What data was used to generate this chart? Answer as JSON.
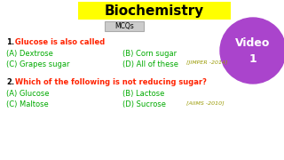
{
  "title": "Biochemistry",
  "title_bg": "#ffff00",
  "title_color": "#000000",
  "subtitle": "MCQs",
  "subtitle_bg": "#cccccc",
  "subtitle_color": "#000000",
  "bg_color": "#ffffff",
  "circle_color": "#aa44cc",
  "circle_text1": "Video",
  "circle_text2": "1",
  "circle_text_color": "#ffffff",
  "q1_num": "1.",
  "q1_text": " Glucose is also called",
  "q1_num_color": "#000000",
  "q1_text_color": "#ff2200",
  "q1_a": "(A) Dextrose",
  "q1_b": "(B) Corn sugar",
  "q1_c": "(C) Grapes sugar",
  "q1_d": "(D) All of these",
  "q1_ref": "[JIMPER -2014]",
  "q1_option_color": "#00aa00",
  "q1_ref_color": "#999900",
  "q2_num": "2.",
  "q2_text": " Which of the following is not reducing sugar?",
  "q2_num_color": "#000000",
  "q2_text_color": "#ff2200",
  "q2_a": "(A) Glucose",
  "q2_b": "(B) Lactose",
  "q2_c": "(C) Maltose",
  "q2_d": "(D) Sucrose",
  "q2_ref": "[AIIMS -2010]",
  "q2_option_color": "#00aa00",
  "q2_ref_color": "#999900",
  "figw": 3.2,
  "figh": 1.8,
  "dpi": 100
}
